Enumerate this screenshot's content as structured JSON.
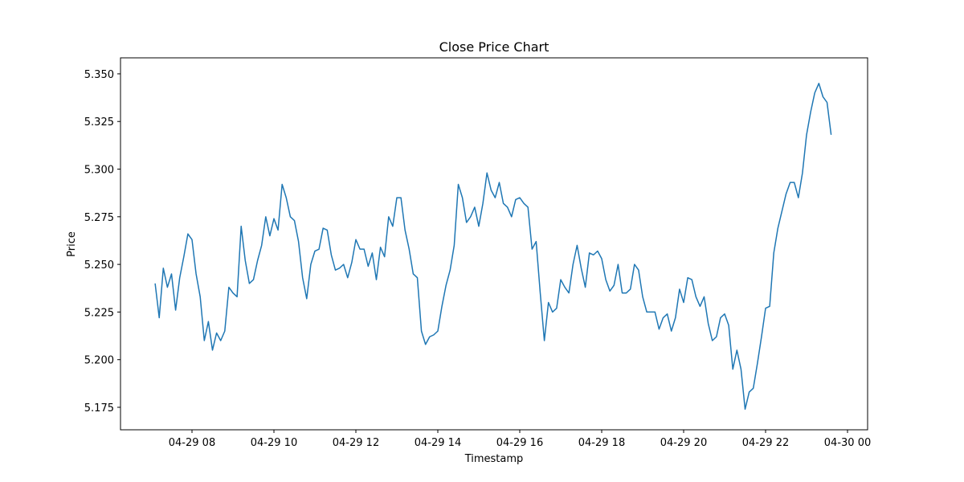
{
  "chart_data": {
    "type": "line",
    "title": "Close Price Chart",
    "x_label": "Timestamp",
    "y_label": "Price",
    "xlim": [
      6.255,
      24.49
    ],
    "ylim": [
      5.1632,
      5.3584
    ],
    "xticks": [
      {
        "value": 8,
        "label": "04-29 08"
      },
      {
        "value": 10,
        "label": "04-29 10"
      },
      {
        "value": 12,
        "label": "04-29 12"
      },
      {
        "value": 14,
        "label": "04-29 14"
      },
      {
        "value": 16,
        "label": "04-29 16"
      },
      {
        "value": 18,
        "label": "04-29 18"
      },
      {
        "value": 20,
        "label": "04-29 20"
      },
      {
        "value": 22,
        "label": "04-29 22"
      },
      {
        "value": 24,
        "label": "04-30 00"
      }
    ],
    "yticks": [
      5.175,
      {
        "value": 5.2,
        "label": "5.200"
      },
      5.225,
      {
        "value": 5.25,
        "label": "5.250"
      },
      5.275,
      {
        "value": 5.3,
        "label": "5.300"
      },
      5.325,
      {
        "value": 5.35,
        "label": "5.350"
      }
    ],
    "color": "#1f77b4",
    "x": [
      7.1,
      7.2,
      7.3,
      7.4,
      7.5,
      7.6,
      7.7,
      7.8,
      7.9,
      8,
      8.1,
      8.2,
      8.3,
      8.4,
      8.5,
      8.6,
      8.7,
      8.8,
      8.9,
      9,
      9.1,
      9.2,
      9.3,
      9.4,
      9.5,
      9.6,
      9.7,
      9.8,
      9.9,
      10,
      10.1,
      10.2,
      10.3,
      10.4,
      10.5,
      10.6,
      10.7,
      10.8,
      10.9,
      11,
      11.1,
      11.2,
      11.3,
      11.4,
      11.5,
      11.6,
      11.7,
      11.8,
      11.9,
      12,
      12.1,
      12.2,
      12.3,
      12.4,
      12.5,
      12.6,
      12.7,
      12.8,
      12.9,
      13,
      13.1,
      13.2,
      13.3,
      13.4,
      13.5,
      13.6,
      13.7,
      13.8,
      13.9,
      14,
      14.1,
      14.2,
      14.3,
      14.4,
      14.5,
      14.6,
      14.7,
      14.8,
      14.9,
      15,
      15.1,
      15.2,
      15.3,
      15.4,
      15.5,
      15.6,
      15.7,
      15.8,
      15.9,
      16,
      16.1,
      16.2,
      16.3,
      16.4,
      16.5,
      16.6,
      16.7,
      16.8,
      16.9,
      17,
      17.1,
      17.2,
      17.3,
      17.4,
      17.5,
      17.6,
      17.7,
      17.8,
      17.9,
      18,
      18.1,
      18.2,
      18.3,
      18.4,
      18.5,
      18.6,
      18.7,
      18.8,
      18.9,
      19,
      19.1,
      19.2,
      19.3,
      19.4,
      19.5,
      19.6,
      19.7,
      19.8,
      19.9,
      20,
      20.1,
      20.2,
      20.3,
      20.4,
      20.5,
      20.6,
      20.7,
      20.8,
      20.9,
      21,
      21.1,
      21.2,
      21.3,
      21.4,
      21.5,
      21.6,
      21.7,
      21.8,
      21.9,
      22,
      22.1,
      22.2,
      22.3,
      22.4,
      22.5,
      22.6,
      22.7,
      22.8,
      22.9,
      23,
      23.1,
      23.2,
      23.3,
      23.4,
      23.5,
      23.6
    ],
    "values": [
      5.24,
      5.222,
      5.248,
      5.238,
      5.245,
      5.226,
      5.243,
      5.254,
      5.266,
      5.263,
      5.245,
      5.233,
      5.21,
      5.22,
      5.205,
      5.214,
      5.21,
      5.215,
      5.238,
      5.235,
      5.233,
      5.27,
      5.252,
      5.24,
      5.242,
      5.252,
      5.26,
      5.275,
      5.265,
      5.274,
      5.268,
      5.292,
      5.285,
      5.275,
      5.273,
      5.262,
      5.243,
      5.232,
      5.25,
      5.257,
      5.258,
      5.269,
      5.268,
      5.255,
      5.247,
      5.248,
      5.25,
      5.243,
      5.251,
      5.263,
      5.258,
      5.258,
      5.249,
      5.256,
      5.242,
      5.259,
      5.254,
      5.275,
      5.27,
      5.285,
      5.285,
      5.268,
      5.258,
      5.245,
      5.243,
      5.215,
      5.208,
      5.212,
      5.213,
      5.215,
      5.228,
      5.239,
      5.247,
      5.26,
      5.292,
      5.285,
      5.272,
      5.275,
      5.28,
      5.27,
      5.282,
      5.298,
      5.289,
      5.285,
      5.293,
      5.282,
      5.28,
      5.275,
      5.284,
      5.285,
      5.282,
      5.28,
      5.258,
      5.262,
      5.235,
      5.21,
      5.23,
      5.225,
      5.227,
      5.242,
      5.238,
      5.235,
      5.25,
      5.26,
      5.248,
      5.238,
      5.256,
      5.255,
      5.257,
      5.253,
      5.242,
      5.236,
      5.239,
      5.25,
      5.235,
      5.235,
      5.237,
      5.25,
      5.247,
      5.233,
      5.225,
      5.225,
      5.225,
      5.216,
      5.222,
      5.224,
      5.215,
      5.222,
      5.237,
      5.23,
      5.243,
      5.242,
      5.233,
      5.228,
      5.233,
      5.219,
      5.21,
      5.212,
      5.222,
      5.224,
      5.218,
      5.195,
      5.205,
      5.195,
      5.174,
      5.183,
      5.185,
      5.198,
      5.212,
      5.227,
      5.228,
      5.256,
      5.269,
      5.278,
      5.287,
      5.293,
      5.293,
      5.285,
      5.298,
      5.318,
      5.33,
      5.34,
      5.345,
      5.338,
      5.335,
      5.318
    ]
  }
}
